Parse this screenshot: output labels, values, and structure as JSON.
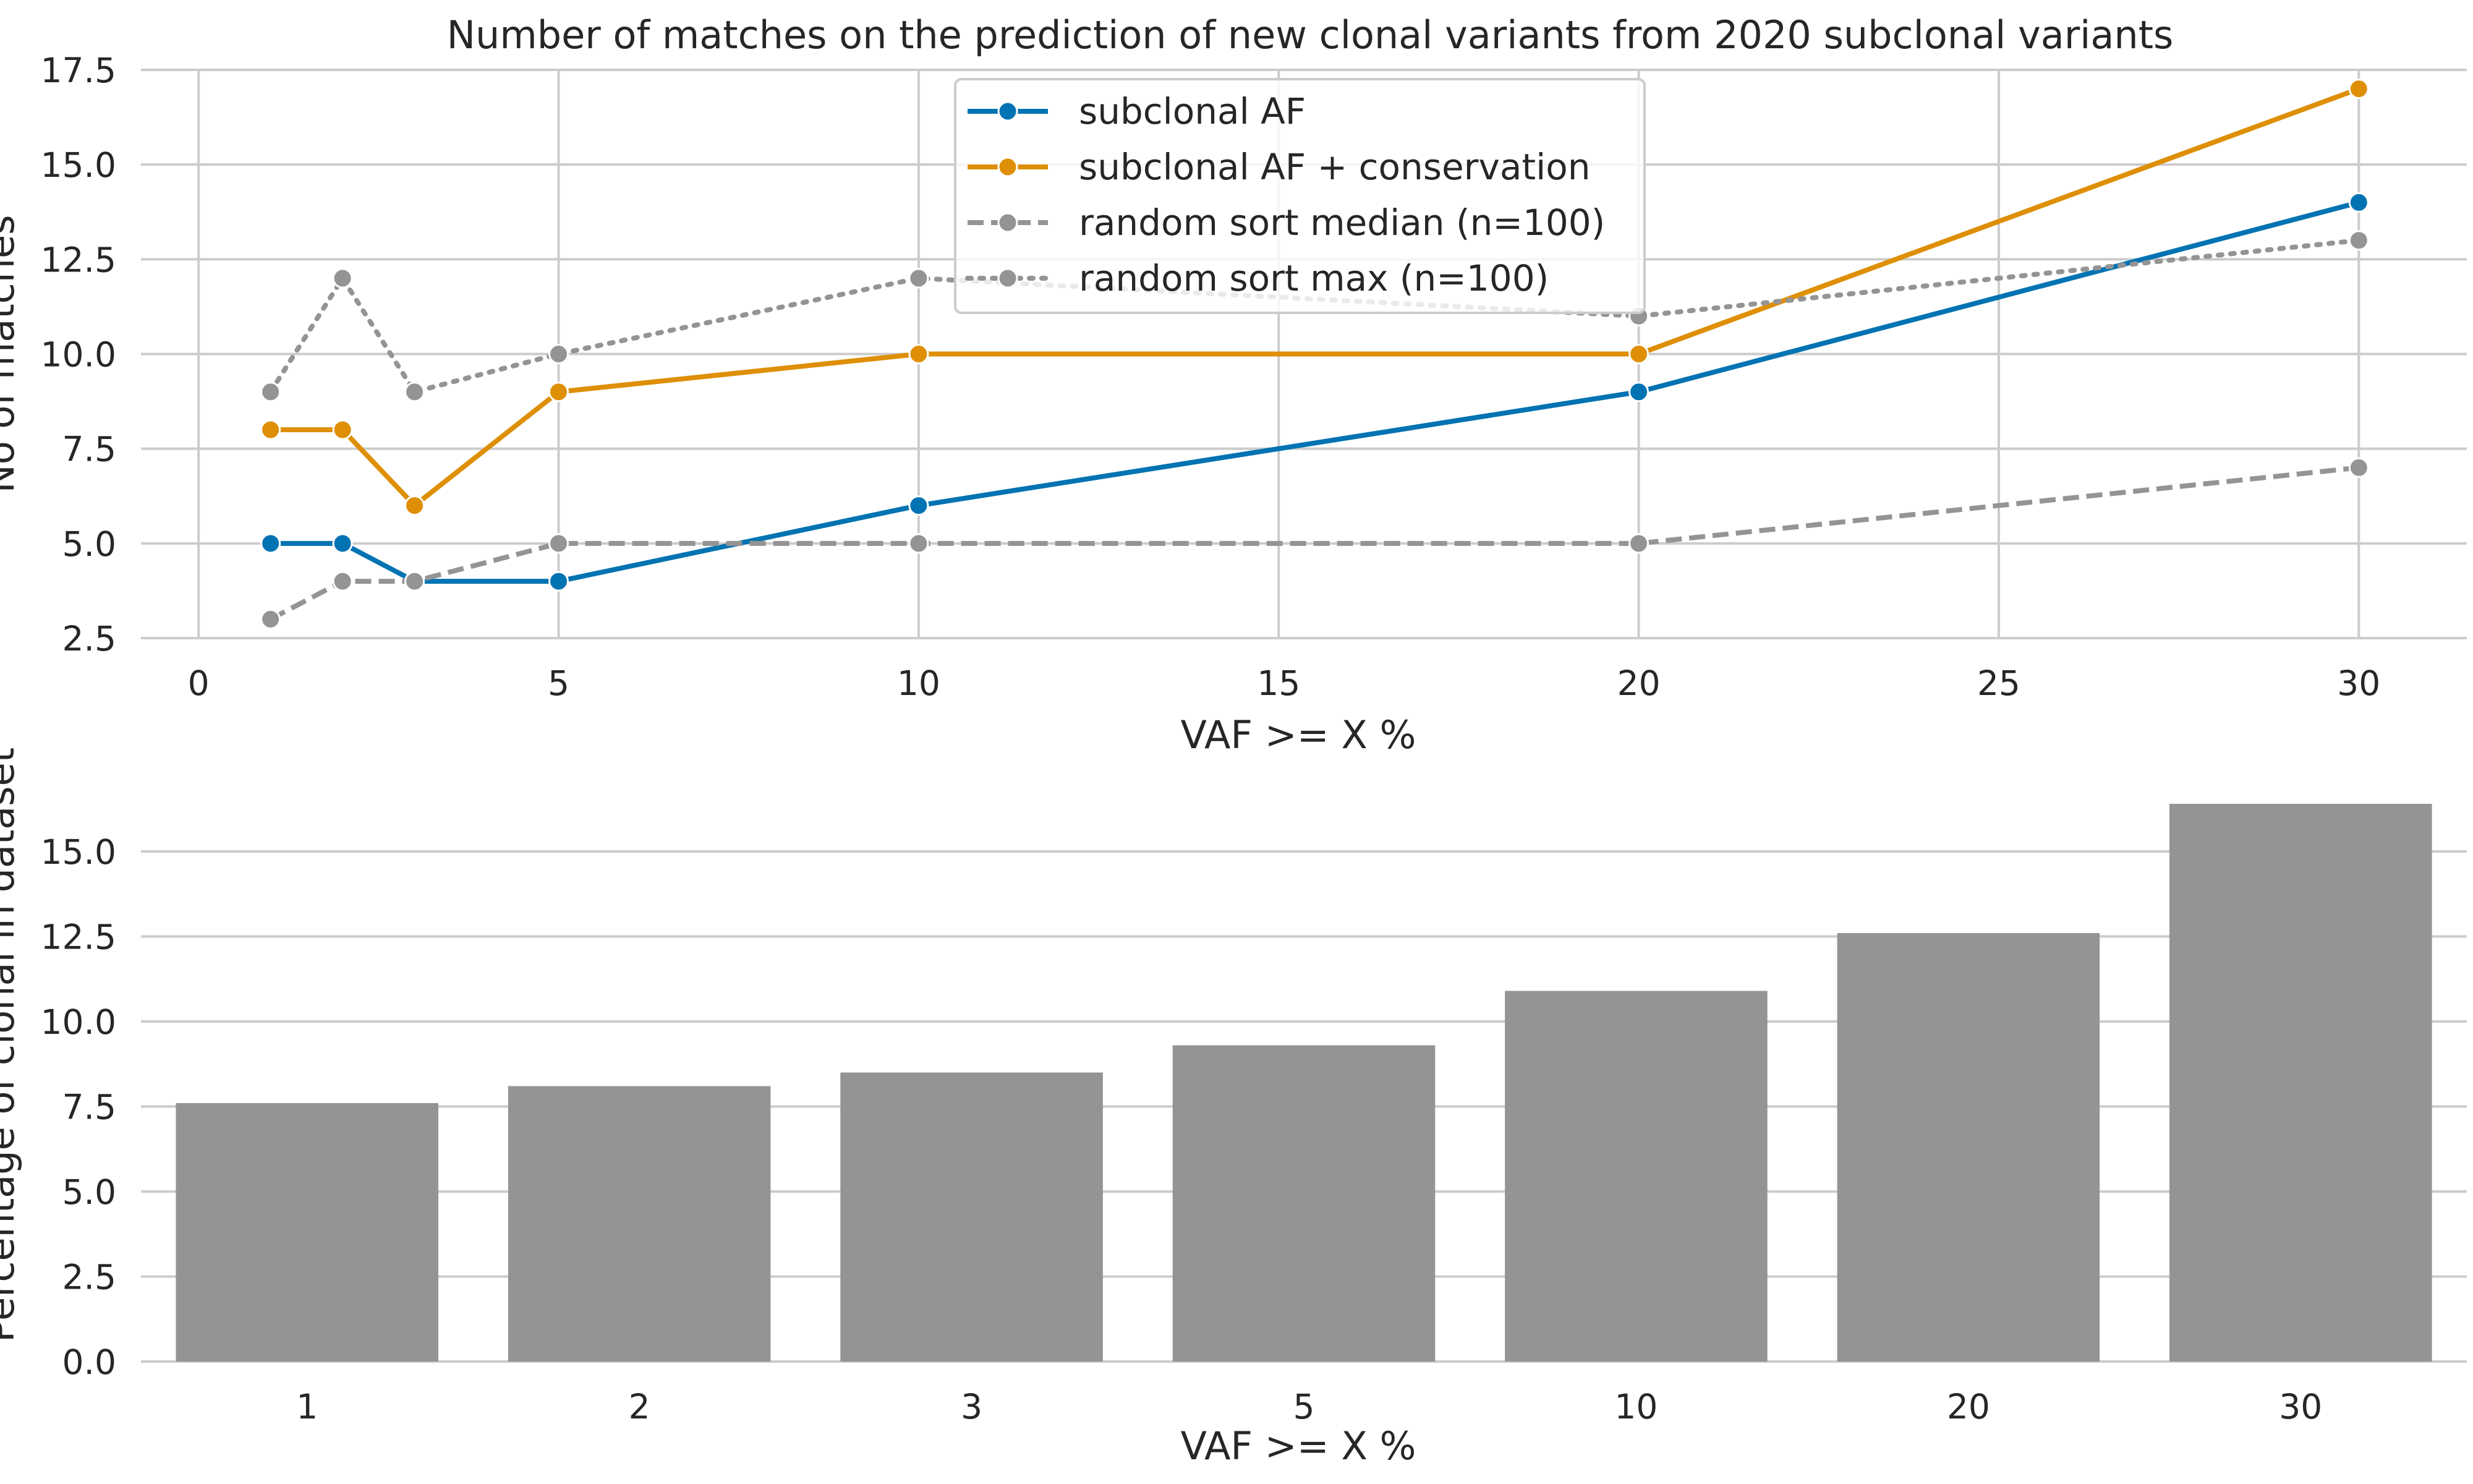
{
  "chart_data": [
    {
      "type": "line",
      "title": "Number of matches on the prediction of new clonal variants from 2020 subclonal variants",
      "xlabel": "VAF >= X %",
      "ylabel": "No of matches",
      "xlim": [
        -0.8,
        31.5
      ],
      "ylim": [
        2.5,
        17.5
      ],
      "xticks": [
        "0",
        "5",
        "10",
        "15",
        "20",
        "25",
        "30"
      ],
      "yticks": [
        "2.5",
        "5.0",
        "7.5",
        "10.0",
        "12.5",
        "15.0",
        "17.5"
      ],
      "grid": true,
      "legend_position": "top-center",
      "x": [
        1,
        2,
        3,
        5,
        10,
        20,
        30
      ],
      "series": [
        {
          "name": "subclonal AF",
          "values": [
            5,
            5,
            4,
            4,
            6,
            9,
            14
          ],
          "color": "#0173b2",
          "style": "solid"
        },
        {
          "name": "subclonal AF + conservation",
          "values": [
            8,
            8,
            6,
            9,
            10,
            10,
            17
          ],
          "color": "#de8f05",
          "style": "solid"
        },
        {
          "name": "random sort median (n=100)",
          "values": [
            3,
            4,
            4,
            5,
            5,
            5,
            7
          ],
          "color": "#949494",
          "style": "dashed"
        },
        {
          "name": "random sort max (n=100)",
          "values": [
            9,
            12,
            9,
            10,
            12,
            11,
            13
          ],
          "color": "#949494",
          "style": "dotted"
        }
      ]
    },
    {
      "type": "bar",
      "title": "",
      "xlabel": "VAF >= X %",
      "ylabel": "Percentage of clonal in dataset",
      "categories": [
        "1",
        "2",
        "3",
        "5",
        "10",
        "20",
        "30"
      ],
      "values": [
        7.6,
        8.1,
        8.5,
        9.3,
        10.9,
        12.6,
        16.4
      ],
      "ylim": [
        0,
        16.5
      ],
      "yticks": [
        "0.0",
        "2.5",
        "5.0",
        "7.5",
        "10.0",
        "12.5",
        "15.0"
      ],
      "grid": true,
      "bar_color": "#949494"
    }
  ]
}
